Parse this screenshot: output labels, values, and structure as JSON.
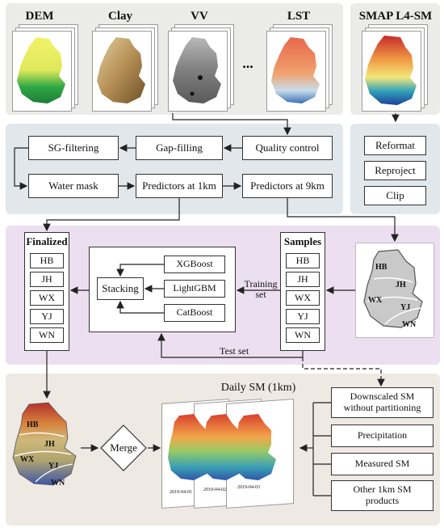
{
  "top": {
    "inputs": [
      "DEM",
      "Clay",
      "VV",
      "LST"
    ],
    "ellipsis": "...",
    "smap_title": "SMAP L4-SM"
  },
  "preprocess": {
    "sg_filtering": "SG-filtering",
    "gap_filling": "Gap-filling",
    "quality_control": "Quality control",
    "water_mask": "Water mask",
    "predictors_1km": "Predictors at 1km",
    "predictors_9km": "Predictors at 9km"
  },
  "smap_steps": [
    "Reformat",
    "Reproject",
    "Clip"
  ],
  "modeling": {
    "finalized_title": "Finalized",
    "samples_title": "Samples",
    "regions": [
      "HB",
      "JH",
      "WX",
      "YJ",
      "WN"
    ],
    "models": [
      "XGBoost",
      "LightGBM",
      "CatBoost"
    ],
    "stacking": "Stacking",
    "training_set": "Training\nset",
    "test_set": "Test set"
  },
  "output": {
    "daily_title": "Daily SM (1km)",
    "merge": "Merge",
    "dates": [
      "2019-04-01",
      "2019-04-02",
      "2019-04-03"
    ],
    "validation": [
      "Downscaled SM\nwithout partitioning",
      "Precipitation",
      "Measured SM",
      "Other 1km SM\nproducts"
    ]
  },
  "colors": {
    "panel_gray": "#ebebea",
    "panel_blue": "#e1e7ea",
    "panel_purple": "#ecdff0",
    "panel_beige": "#efe9e3"
  }
}
